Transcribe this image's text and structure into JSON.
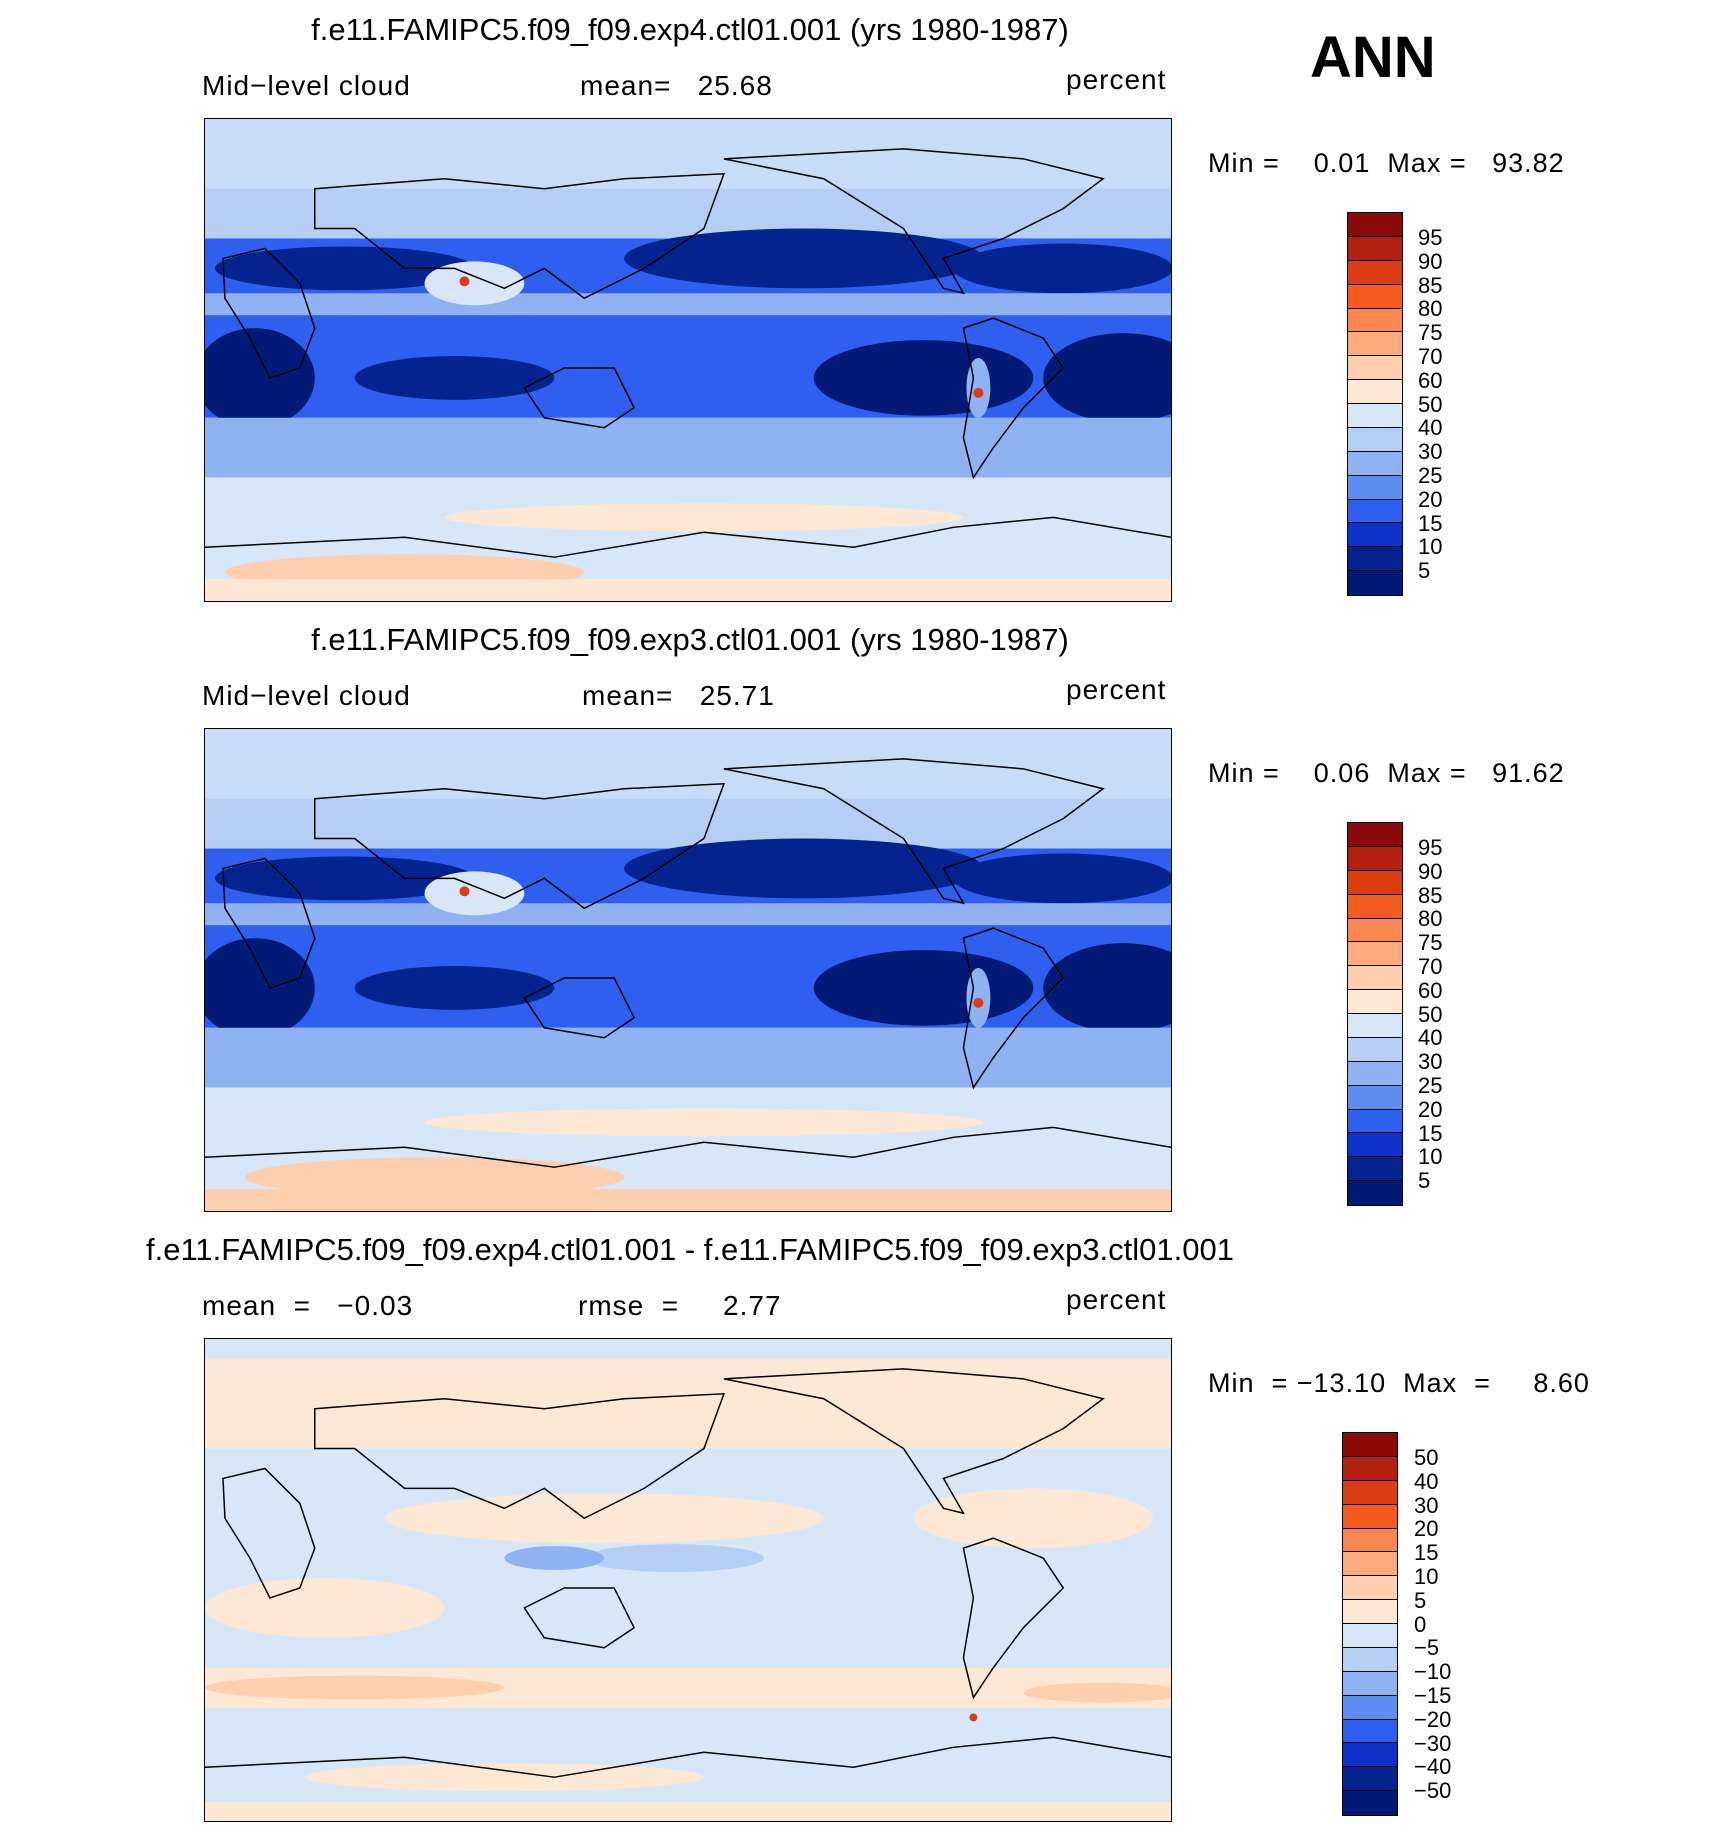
{
  "season": "ANN",
  "panels": [
    {
      "title": "f.e11.FAMIPC5.f09_f09.exp4.ctl01.001 (yrs 1980-1987)",
      "left": "Mid−level cloud",
      "middle": "mean=   25.68",
      "right": "percent",
      "minmax": "Min =    0.01  Max =   93.82",
      "levels": [
        "95",
        "90",
        "85",
        "80",
        "75",
        "70",
        "60",
        "50",
        "40",
        "30",
        "25",
        "20",
        "15",
        "10",
        "5"
      ]
    },
    {
      "title": "f.e11.FAMIPC5.f09_f09.exp3.ctl01.001 (yrs 1980-1987)",
      "left": "Mid−level cloud",
      "middle": "mean=   25.71",
      "right": "percent",
      "minmax": "Min =    0.06  Max =   91.62",
      "levels": [
        "95",
        "90",
        "85",
        "80",
        "75",
        "70",
        "60",
        "50",
        "40",
        "30",
        "25",
        "20",
        "15",
        "10",
        "5"
      ]
    },
    {
      "title": "f.e11.FAMIPC5.f09_f09.exp4.ctl01.001 - f.e11.FAMIPC5.f09_f09.exp3.ctl01.001",
      "left": "mean  =   −0.03",
      "middle": "rmse  =     2.77",
      "right": "percent",
      "minmax": "Min  = −13.10  Max  =     8.60",
      "levels": [
        "50",
        "40",
        "30",
        "20",
        "15",
        "10",
        "5",
        "0",
        "−5",
        "−10",
        "−15",
        "−20",
        "−30",
        "−40",
        "−50"
      ]
    }
  ],
  "colors": {
    "colorbar": [
      "#8a0a0a",
      "#b3200f",
      "#dc3c12",
      "#f55a1e",
      "#fa8650",
      "#fbaa7c",
      "#fdcfae",
      "#fde8d6",
      "#d8e7f7",
      "#b4cef4",
      "#8fb2f2",
      "#5c8df0",
      "#2e5fee",
      "#0b33cc",
      "#03238f",
      "#021a75"
    ],
    "land_outline": "#000000",
    "ocean_dark": "#00158a",
    "ocean_mid": "#1b46e6",
    "light_blue": "#c7dcf8",
    "pale_peach": "#fde7d5"
  }
}
